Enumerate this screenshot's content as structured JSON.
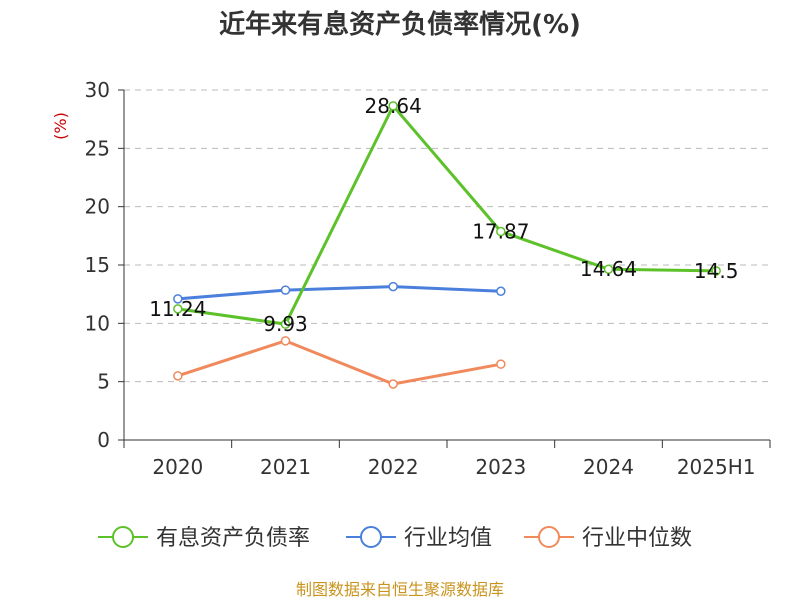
{
  "chart_data": {
    "type": "line",
    "title": "近年来有息资产负债率情况(%)",
    "ylabel": "(%)",
    "xlabel": "",
    "categories": [
      "2020",
      "2021",
      "2022",
      "2023",
      "2024",
      "2025H1"
    ],
    "ylim": [
      0,
      30
    ],
    "yticks": [
      0,
      5,
      10,
      15,
      20,
      25,
      30
    ],
    "grid": true,
    "legend_position": "bottom",
    "series": [
      {
        "name": "有息资产负债率",
        "color": "#5dc22a",
        "values": [
          11.24,
          9.93,
          28.64,
          17.87,
          14.64,
          14.5
        ],
        "labels": [
          "11.24",
          "9.93",
          "28.64",
          "17.87",
          "14.64",
          "14.5"
        ],
        "show_labels": true
      },
      {
        "name": "行业均值",
        "color": "#4a7fdc",
        "values": [
          12.1,
          12.85,
          13.15,
          12.75,
          null,
          null
        ],
        "show_labels": false
      },
      {
        "name": "行业中位数",
        "color": "#f08a5d",
        "values": [
          5.5,
          8.5,
          4.8,
          6.5,
          null,
          null
        ],
        "show_labels": false
      }
    ],
    "source": "制图数据来自恒生聚源数据库"
  }
}
